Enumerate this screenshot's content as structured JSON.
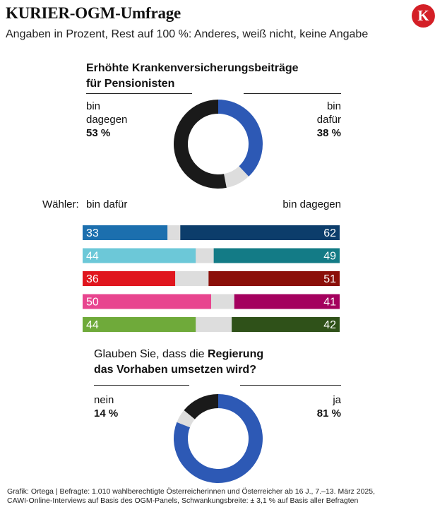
{
  "header": {
    "title": "KURIER-OGM-Umfrage",
    "subtitle": "Angaben in Prozent, Rest auf 100 %: Anderes, weiß nicht, keine Angabe",
    "logo_letter": "K",
    "logo_color": "#d41f26"
  },
  "chart_data": [
    {
      "type": "pie",
      "title": "Erhöhte Krankenversicherungsbeiträge für Pensionisten",
      "title_line1": "Erhöhte Krankenversicherungsbeiträge",
      "title_line2": "für Pensionisten",
      "slices": [
        {
          "label": "bin dafür",
          "value": 38,
          "value_text": "38 %",
          "color": "#2d59b5"
        },
        {
          "label": "Rest",
          "value": 9,
          "color": "#dddddd"
        },
        {
          "label": "bin dagegen",
          "value": 53,
          "value_text": "53 %",
          "color": "#1a1a1a"
        }
      ],
      "left_label_line1": "bin",
      "left_label_line2": "dagegen",
      "left_value": "53 %",
      "right_label_line1": "bin",
      "right_label_line2": "dafür",
      "right_value": "38 %"
    },
    {
      "type": "bar",
      "stacked": true,
      "title": "Wähler:",
      "legend_left": "bin dafür",
      "legend_right": "bin dagegen",
      "rows": [
        {
          "dafuer": 33,
          "dagegen": 62,
          "color_dafuer": "#1c6fae",
          "color_dagegen": "#0c3d6b"
        },
        {
          "dafuer": 44,
          "dagegen": 49,
          "color_dafuer": "#6cc8d8",
          "color_dagegen": "#137b86"
        },
        {
          "dafuer": 36,
          "dagegen": 51,
          "color_dafuer": "#e0161e",
          "color_dagegen": "#8b0f09"
        },
        {
          "dafuer": 50,
          "dagegen": 41,
          "color_dafuer": "#e8458f",
          "color_dagegen": "#a4005e"
        },
        {
          "dafuer": 44,
          "dagegen": 42,
          "color_dafuer": "#6faa3a",
          "color_dagegen": "#2f5119"
        }
      ],
      "rest_color": "#dddddd",
      "xlim": [
        0,
        100
      ]
    },
    {
      "type": "pie",
      "title_plain": "Glauben Sie, dass die ",
      "title_bold": "Regierung",
      "title_line2": "das Vorhaben umsetzen wird?",
      "slices": [
        {
          "label": "ja",
          "value": 81,
          "value_text": "81 %",
          "color": "#2d59b5"
        },
        {
          "label": "Rest",
          "value": 5,
          "color": "#dddddd"
        },
        {
          "label": "nein",
          "value": 14,
          "value_text": "14 %",
          "color": "#1a1a1a"
        }
      ],
      "left_label": "nein",
      "left_value": "14 %",
      "right_label": "ja",
      "right_value": "81 %"
    }
  ],
  "source": {
    "line1": "Grafik: Ortega | Befragte: 1.010 wahlberechtigte Österreicherinnen und Österreicher ab 16 J., 7.–13. März 2025,",
    "line2": "CAWI-Online-Interviews  auf Basis des OGM-Panels, Schwankungsbreite: ± 3,1 % auf Basis aller Befragten"
  }
}
